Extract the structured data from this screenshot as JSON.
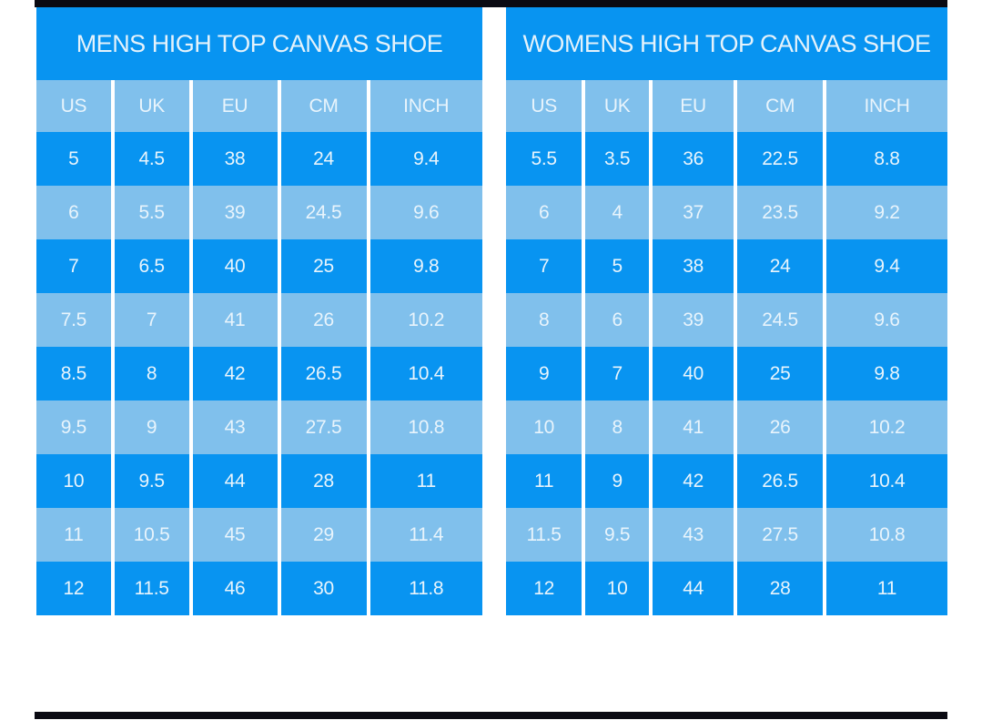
{
  "page": {
    "background_color": "#ffffff",
    "edge_bar_color": "#0a0a12"
  },
  "colors": {
    "row_bright_blue": "#0894f1",
    "row_light_blue": "#80c0ec",
    "text_color": "#e8f4fc",
    "separator_color": "#ffffff"
  },
  "chart_data": [
    {
      "type": "table",
      "title": "MENS HIGH TOP CANVAS SHOE",
      "columns": [
        "US",
        "UK",
        "EU",
        "CM",
        "INCH"
      ],
      "rows": [
        [
          "5",
          "4.5",
          "38",
          "24",
          "9.4"
        ],
        [
          "6",
          "5.5",
          "39",
          "24.5",
          "9.6"
        ],
        [
          "7",
          "6.5",
          "40",
          "25",
          "9.8"
        ],
        [
          "7.5",
          "7",
          "41",
          "26",
          "10.2"
        ],
        [
          "8.5",
          "8",
          "42",
          "26.5",
          "10.4"
        ],
        [
          "9.5",
          "9",
          "43",
          "27.5",
          "10.8"
        ],
        [
          "10",
          "9.5",
          "44",
          "28",
          "11"
        ],
        [
          "11",
          "10.5",
          "45",
          "29",
          "11.4"
        ],
        [
          "12",
          "11.5",
          "46",
          "30",
          "11.8"
        ]
      ]
    },
    {
      "type": "table",
      "title": "WOMENS HIGH TOP CANVAS SHOE",
      "columns": [
        "US",
        "UK",
        "EU",
        "CM",
        "INCH"
      ],
      "rows": [
        [
          "5.5",
          "3.5",
          "36",
          "22.5",
          "8.8"
        ],
        [
          "6",
          "4",
          "37",
          "23.5",
          "9.2"
        ],
        [
          "7",
          "5",
          "38",
          "24",
          "9.4"
        ],
        [
          "8",
          "6",
          "39",
          "24.5",
          "9.6"
        ],
        [
          "9",
          "7",
          "40",
          "25",
          "9.8"
        ],
        [
          "10",
          "8",
          "41",
          "26",
          "10.2"
        ],
        [
          "11",
          "9",
          "42",
          "26.5",
          "10.4"
        ],
        [
          "11.5",
          "9.5",
          "43",
          "27.5",
          "10.8"
        ],
        [
          "12",
          "10",
          "44",
          "28",
          "11"
        ]
      ]
    }
  ]
}
